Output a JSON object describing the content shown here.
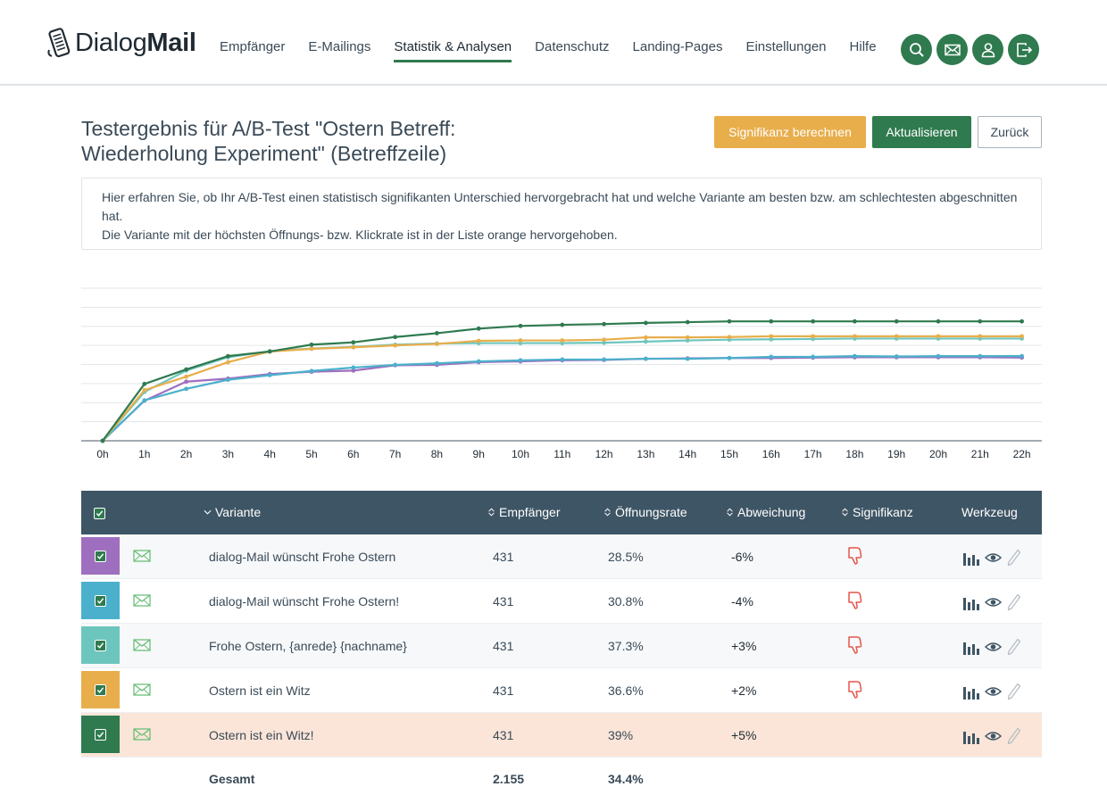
{
  "app": {
    "logo_regular": "Dialog",
    "logo_bold": "Mail"
  },
  "nav": {
    "items": [
      {
        "label": "Empfänger",
        "active": false
      },
      {
        "label": "E-Mailings",
        "active": false
      },
      {
        "label": "Statistik & Analysen",
        "active": true
      },
      {
        "label": "Datenschutz",
        "active": false
      },
      {
        "label": "Landing-Pages",
        "active": false
      },
      {
        "label": "Einstellungen",
        "active": false
      },
      {
        "label": "Hilfe",
        "active": false
      }
    ],
    "icons": [
      "search-icon",
      "mail-icon",
      "user-icon",
      "logout-icon"
    ]
  },
  "page": {
    "title": "Testergebnis für A/B-Test \"Ostern Betreff: Wiederholung Experiment\" (Betreffzeile)",
    "buttons": {
      "significance": "Signifikanz berechnen",
      "update": "Aktualisieren",
      "back": "Zurück"
    },
    "info_line1": "Hier erfahren Sie, ob Ihr A/B-Test einen statistisch signifikanten Unterschied hervorgebracht hat und welche Variante am besten bzw. am schlechtesten abgeschnitten hat.",
    "info_line2": "Die Variante mit der höchsten Öffnungs- bzw. Klickrate ist in der Liste orange hervorgehoben."
  },
  "chart_data": {
    "type": "line",
    "x": [
      "0h",
      "1h",
      "2h",
      "3h",
      "4h",
      "5h",
      "6h",
      "7h",
      "8h",
      "9h",
      "10h",
      "11h",
      "12h",
      "13h",
      "14h",
      "15h",
      "16h",
      "17h",
      "18h",
      "19h",
      "20h",
      "21h",
      "22h"
    ],
    "ylim": [
      0,
      40
    ],
    "grid": true,
    "series": [
      {
        "color": "#9f6fbf",
        "values": [
          0,
          10.5,
          15.5,
          16.3,
          17.5,
          18.1,
          18.4,
          19.8,
          19.9,
          20.6,
          20.8,
          21.1,
          21.2,
          21.5,
          21.6,
          21.7,
          21.7,
          21.8,
          21.9,
          21.9,
          21.9,
          21.9,
          21.8
        ]
      },
      {
        "color": "#4ab0cc",
        "values": [
          0,
          10.6,
          13.6,
          16.0,
          17.2,
          18.3,
          19.2,
          19.9,
          20.3,
          20.8,
          21.1,
          21.3,
          21.3,
          21.5,
          21.5,
          21.7,
          22.0,
          22.0,
          22.2,
          22.1,
          22.2,
          22.2,
          22.2
        ]
      },
      {
        "color": "#6dc6be",
        "values": [
          0,
          12.8,
          18.4,
          21.9,
          23.5,
          24.2,
          24.6,
          25.2,
          25.5,
          25.6,
          25.6,
          25.6,
          25.7,
          26.0,
          26.3,
          26.5,
          26.6,
          26.7,
          26.8,
          26.8,
          26.8,
          26.8,
          26.8
        ]
      },
      {
        "color": "#e8ae4c",
        "values": [
          0,
          13.3,
          16.8,
          20.6,
          23.4,
          24.1,
          24.5,
          25.0,
          25.4,
          26.2,
          26.3,
          26.3,
          26.5,
          27.1,
          27.1,
          27.2,
          27.4,
          27.4,
          27.4,
          27.4,
          27.4,
          27.4,
          27.4
        ]
      },
      {
        "color": "#2f7a4f",
        "values": [
          0,
          14.9,
          18.7,
          22.2,
          23.4,
          25.2,
          25.8,
          27.2,
          28.2,
          29.4,
          30.1,
          30.4,
          30.6,
          30.9,
          31.1,
          31.3,
          31.3,
          31.3,
          31.3,
          31.3,
          31.3,
          31.3,
          31.3
        ]
      }
    ]
  },
  "table": {
    "headers": {
      "variant": "Variante",
      "recipients": "Empfänger",
      "open_rate": "Öffnungsrate",
      "deviation": "Abweichung",
      "significance": "Signifikanz",
      "tools": "Werkzeug"
    },
    "rows": [
      {
        "color": "#9f6fbf",
        "variant": "dialog-Mail wünscht Frohe Ostern",
        "recipients": "431",
        "open_rate": "28.5%",
        "deviation": "-6%",
        "significance_icon": "thumbs-down-icon"
      },
      {
        "color": "#4ab0cc",
        "variant": "dialog-Mail wünscht Frohe Ostern!",
        "recipients": "431",
        "open_rate": "30.8%",
        "deviation": "-4%",
        "significance_icon": "thumbs-down-icon"
      },
      {
        "color": "#6dc6be",
        "variant": "Frohe Ostern, {anrede} {nachname}",
        "recipients": "431",
        "open_rate": "37.3%",
        "deviation": "+3%",
        "significance_icon": "thumbs-down-icon"
      },
      {
        "color": "#e8ae4c",
        "variant": "Ostern ist ein Witz",
        "recipients": "431",
        "open_rate": "36.6%",
        "deviation": "+2%",
        "significance_icon": "thumbs-down-icon"
      },
      {
        "color": "#2f7a4f",
        "variant": "Ostern ist ein Witz!",
        "recipients": "431",
        "open_rate": "39%",
        "deviation": "+5%",
        "significance_icon": ""
      }
    ],
    "total": {
      "label": "Gesamt",
      "recipients": "2.155",
      "open_rate": "34.4%"
    }
  },
  "colors": {
    "brand_green": "#2f7a4f",
    "header_dark": "#3e5565",
    "highlight_row": "#fbe5d8",
    "thumbs_down": "#e3554c"
  }
}
